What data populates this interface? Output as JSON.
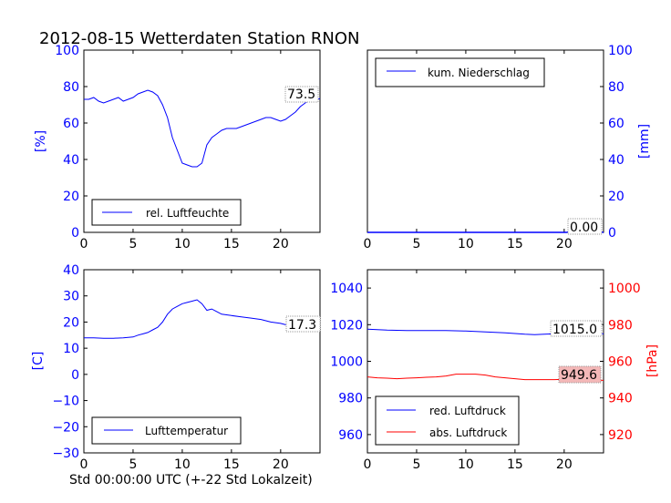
{
  "title": "2012-08-15 Wetterdaten Station RNON",
  "xlabel": "Std 00:00:00 UTC (+-22 Std Lokalzeit)",
  "colors": {
    "blue": "#0000ff",
    "red": "#ff0000",
    "label_box_red_fill": "#f4b8b8"
  },
  "chart_data": [
    {
      "type": "line",
      "ylabel": "[%]",
      "xlim": [
        0,
        24
      ],
      "ylim": [
        0,
        100
      ],
      "xticks": [
        "0",
        "5",
        "10",
        "15",
        "20"
      ],
      "yticks": [
        "0",
        "20",
        "40",
        "60",
        "80",
        "100"
      ],
      "legend": "bottom-left",
      "last_value_label": "73.5",
      "series": [
        {
          "name": "rel. Luftfeuchte",
          "color": "#0000ff",
          "x": [
            0,
            0.5,
            1,
            1.5,
            2,
            2.5,
            3,
            3.5,
            4,
            4.5,
            5,
            5.5,
            6,
            6.5,
            7,
            7.5,
            8,
            8.5,
            9,
            9.5,
            10,
            10.5,
            11,
            11.5,
            12,
            12.5,
            13,
            13.5,
            14,
            14.5,
            15,
            15.5,
            16,
            16.5,
            17,
            17.5,
            18,
            18.5,
            19,
            19.5,
            20,
            20.5,
            21,
            21.5,
            22,
            22.5,
            23,
            23.5,
            24
          ],
          "y": [
            73,
            73,
            74,
            72,
            71,
            72,
            73,
            74,
            72,
            73,
            74,
            76,
            77,
            78,
            77,
            75,
            70,
            63,
            52,
            45,
            38,
            37,
            36,
            36,
            38,
            48,
            52,
            54,
            56,
            57,
            57,
            57,
            58,
            59,
            60,
            61,
            62,
            63,
            63,
            62,
            61,
            62,
            64,
            66,
            69,
            71,
            73,
            72,
            73.5
          ]
        }
      ]
    },
    {
      "type": "line",
      "ylabel": "[mm]",
      "xlim": [
        0,
        24
      ],
      "ylim": [
        0,
        100
      ],
      "xticks": [
        "0",
        "5",
        "10",
        "15",
        "20"
      ],
      "yticks": [
        "0",
        "20",
        "40",
        "60",
        "80",
        "100"
      ],
      "legend": "top-left",
      "last_value_label": "0.00",
      "series": [
        {
          "name": "kum. Niederschlag",
          "color": "#0000ff",
          "x": [
            0,
            24
          ],
          "y": [
            0,
            0
          ]
        }
      ]
    },
    {
      "type": "line",
      "ylabel": "[C]",
      "xlim": [
        0,
        24
      ],
      "ylim": [
        -30,
        40
      ],
      "xticks": [
        "0",
        "5",
        "10",
        "15",
        "20"
      ],
      "yticks": [
        "−30",
        "−20",
        "−10",
        "0",
        "10",
        "20",
        "30",
        "40"
      ],
      "legend": "bottom-left",
      "last_value_label": "17.3",
      "series": [
        {
          "name": "Lufttemperatur",
          "color": "#0000ff",
          "x": [
            0,
            1,
            2,
            3,
            4,
            5,
            5.5,
            6,
            6.5,
            7,
            7.5,
            8,
            8.5,
            9,
            9.5,
            10,
            10.5,
            11,
            11.5,
            12,
            12.5,
            13,
            13.5,
            14,
            15,
            16,
            17,
            18,
            19,
            20,
            21,
            22,
            23,
            24
          ],
          "y": [
            14,
            14,
            13.8,
            13.8,
            14,
            14.3,
            15,
            15.5,
            16,
            17,
            18,
            20,
            23,
            25,
            26,
            27,
            27.5,
            28,
            28.5,
            27,
            24.5,
            25,
            24,
            23,
            22.5,
            22,
            21.5,
            21,
            20,
            19.5,
            18.5,
            18,
            17.8,
            17.3
          ]
        }
      ]
    },
    {
      "type": "line",
      "ylabel": "[hPa]",
      "xlim": [
        0,
        24
      ],
      "ylim_left": [
        950,
        1050
      ],
      "ylim_right": [
        910,
        1010
      ],
      "xticks": [
        "0",
        "5",
        "10",
        "15",
        "20"
      ],
      "yticks_left": [
        "960",
        "980",
        "1000",
        "1020",
        "1040"
      ],
      "yticks_right": [
        "920",
        "940",
        "960",
        "980",
        "1000"
      ],
      "legend": "bottom-left",
      "last_value_labels": [
        "1015.0",
        "949.6"
      ],
      "series": [
        {
          "name": "red. Luftdruck",
          "color": "#0000ff",
          "axis": "left",
          "x": [
            0,
            2,
            4,
            6,
            8,
            10,
            12,
            14,
            16,
            17,
            18,
            20,
            22,
            24
          ],
          "y": [
            1017.5,
            1017,
            1016.8,
            1016.8,
            1016.8,
            1016.5,
            1016,
            1015.5,
            1014.8,
            1014.6,
            1014.8,
            1015.2,
            1015.2,
            1015.0
          ]
        },
        {
          "name": "abs. Luftdruck",
          "color": "#ff0000",
          "axis": "right",
          "x": [
            0,
            1,
            2,
            3,
            4,
            5,
            6,
            7,
            8,
            8.5,
            9,
            10,
            11,
            12,
            13,
            14,
            15,
            16,
            17,
            18,
            19,
            20,
            21,
            22,
            23,
            24
          ],
          "y": [
            951.5,
            951,
            950.8,
            950.5,
            950.8,
            951,
            951.3,
            951.5,
            952,
            952.5,
            953,
            953,
            953,
            952.5,
            951.5,
            951,
            950.5,
            950,
            950,
            950,
            950,
            950.2,
            950.5,
            950,
            949.8,
            949.6
          ]
        }
      ]
    }
  ]
}
